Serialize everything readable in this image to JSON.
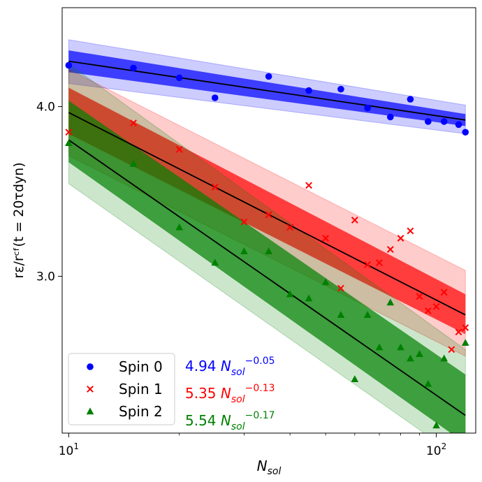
{
  "chart_data": {
    "type": "scatter",
    "x_scale": "log",
    "y_scale": "log",
    "xlim": [
      9.6,
      128
    ],
    "ylim": [
      2.3,
      4.73
    ],
    "xlabel": {
      "base": "N",
      "sub": "sol"
    },
    "ylabel": {
      "text": "rε/rᶜᶠ(t = 20τdyn)"
    },
    "x_ticks": [
      {
        "value": 10,
        "base": "10",
        "exp": "1"
      },
      {
        "value": 100,
        "base": "10",
        "exp": "2"
      }
    ],
    "y_ticks": [
      {
        "value": 3.0,
        "label": "3.0"
      },
      {
        "value": 4.0,
        "label": "4.0"
      }
    ],
    "legend_position": "lower-left",
    "series": [
      {
        "name": "Spin 0",
        "marker": "circle",
        "color": "#0000ff",
        "fill": "#0000ff",
        "fit": {
          "coef": 4.94,
          "exp": -0.05
        },
        "fit_label": {
          "coef": "4.94",
          "base": "N",
          "sub": "sol",
          "exp": "−0.05"
        },
        "line": {
          "y_start": 4.32,
          "y_end": 3.91
        },
        "band_inner": {
          "upper": [
            4.4,
            3.95
          ],
          "lower": [
            4.24,
            3.87
          ]
        },
        "band_outer": {
          "upper": [
            4.48,
            4.01
          ],
          "lower": [
            4.16,
            3.82
          ]
        },
        "x": [
          10,
          15,
          20,
          25,
          35,
          45,
          55,
          65,
          75,
          85,
          95,
          105,
          115,
          120
        ],
        "y": [
          4.29,
          4.27,
          4.2,
          4.06,
          4.21,
          4.11,
          4.12,
          3.99,
          3.93,
          4.05,
          3.9,
          3.9,
          3.88,
          3.83
        ]
      },
      {
        "name": "Spin 1",
        "marker": "x",
        "color": "#ff0000",
        "fill": "#ff0000",
        "fit": {
          "coef": 5.35,
          "exp": -0.13
        },
        "fit_label": {
          "coef": "5.35",
          "base": "N",
          "sub": "sol",
          "exp": "−0.13"
        },
        "line": {
          "y_start": 3.96,
          "y_end": 2.81
        },
        "band_inner": {
          "upper": [
            4.13,
            2.91
          ],
          "lower": [
            3.82,
            2.72
          ]
        },
        "band_outer": {
          "upper": [
            4.26,
            3.03
          ],
          "lower": [
            3.68,
            2.62
          ]
        },
        "x": [
          10,
          15,
          20,
          25,
          30,
          35,
          40,
          45,
          50,
          55,
          60,
          65,
          70,
          75,
          80,
          85,
          90,
          95,
          100,
          105,
          110,
          115,
          120
        ],
        "y": [
          3.83,
          3.89,
          3.72,
          3.49,
          3.29,
          3.33,
          3.26,
          3.5,
          3.2,
          2.94,
          3.3,
          3.06,
          3.07,
          3.14,
          3.2,
          3.24,
          2.9,
          2.83,
          2.85,
          2.92,
          2.65,
          2.73,
          2.75
        ]
      },
      {
        "name": "Spin 2",
        "marker": "triangle",
        "color": "#008000",
        "fill": "#008000",
        "fit": {
          "coef": 5.54,
          "exp": -0.17
        },
        "fit_label": {
          "coef": "5.54",
          "base": "N",
          "sub": "sol",
          "exp": "−0.17"
        },
        "line": {
          "y_start": 3.78,
          "y_end": 2.37
        },
        "band_inner": {
          "upper": [
            4.04,
            2.54
          ],
          "lower": [
            3.64,
            2.26
          ]
        },
        "band_outer": {
          "upper": [
            4.3,
            2.65
          ],
          "lower": [
            3.51,
            2.19
          ]
        },
        "x": [
          10,
          15,
          20,
          25,
          30,
          35,
          40,
          45,
          50,
          55,
          60,
          65,
          70,
          75,
          80,
          85,
          90,
          95,
          100,
          105,
          110,
          115,
          120
        ],
        "y": [
          3.76,
          3.63,
          3.26,
          3.07,
          3.13,
          3.13,
          2.91,
          2.89,
          2.97,
          2.81,
          2.52,
          2.81,
          2.66,
          2.87,
          2.66,
          2.61,
          2.63,
          2.5,
          2.33,
          2.61,
          2.29,
          2.26,
          2.68
        ]
      }
    ]
  }
}
